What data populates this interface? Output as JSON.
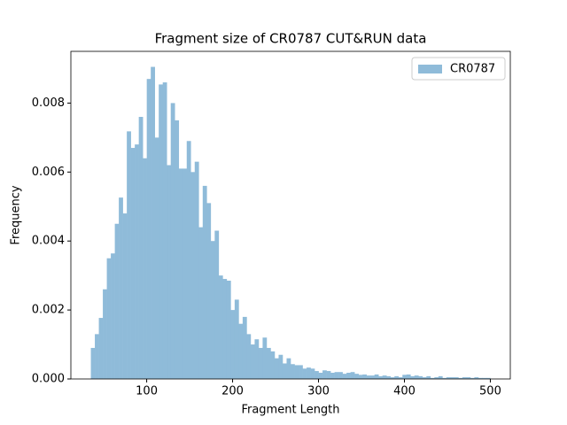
{
  "chart_data": {
    "type": "histogram",
    "title": "Fragment size of CR0787 CUT&RUN data",
    "x_label": "Fragment Length",
    "y_label": "Frequency",
    "bins": [
      35,
      39.65,
      44.3,
      48.95,
      53.6,
      58.25,
      62.9,
      67.55,
      72.2,
      76.85,
      81.5,
      86.15,
      90.8,
      95.45,
      100.1,
      104.75,
      109.4,
      114.05,
      118.7,
      123.35,
      128,
      132.65,
      137.3,
      141.95,
      146.6,
      151.25,
      155.9,
      160.55,
      165.2,
      169.85,
      174.5,
      179.15,
      183.8,
      188.45,
      193.1,
      197.75,
      202.4,
      207.05,
      211.7,
      216.35,
      221,
      225.65,
      230.3,
      234.95,
      239.6,
      244.25,
      248.9,
      253.55,
      258.2,
      262.85,
      267.5,
      272.15,
      276.8,
      281.45,
      286.1,
      290.75,
      295.4,
      300.05,
      304.7,
      309.35,
      314,
      318.65,
      323.3,
      327.95,
      332.6,
      337.25,
      341.9,
      346.55,
      351.2,
      355.85,
      360.5,
      365.15,
      369.8,
      374.45,
      379.1,
      383.75,
      388.4,
      393.05,
      397.7,
      402.35,
      407,
      411.65,
      416.3,
      420.95,
      425.6,
      430.25,
      434.9,
      439.55,
      444.2,
      448.85,
      453.5,
      458.15,
      462.8,
      467.45,
      472.1,
      476.75,
      481.4,
      486.05,
      490.7,
      495.35,
      500
    ],
    "series": [
      {
        "name": "CR0787",
        "color": "#8fbbd9",
        "values": [
          0.0009,
          0.0013,
          0.00177,
          0.0026,
          0.0035,
          0.00364,
          0.0045,
          0.00526,
          0.0048,
          0.00718,
          0.0067,
          0.0068,
          0.0076,
          0.0064,
          0.0087,
          0.00905,
          0.007,
          0.00854,
          0.0086,
          0.0062,
          0.008,
          0.0075,
          0.0061,
          0.0061,
          0.0069,
          0.006,
          0.0063,
          0.0044,
          0.0056,
          0.0051,
          0.004,
          0.0043,
          0.003,
          0.0029,
          0.00285,
          0.002,
          0.0023,
          0.0016,
          0.0018,
          0.0013,
          0.001,
          0.00115,
          0.0009,
          0.0012,
          0.0009,
          0.0008,
          0.0006,
          0.0007,
          0.00045,
          0.0006,
          0.00043,
          0.0004,
          0.0004,
          0.0003,
          0.00033,
          0.0003,
          0.00023,
          0.00018,
          0.00025,
          0.00023,
          0.00018,
          0.0002,
          0.0002,
          0.00015,
          0.00018,
          0.0002,
          0.00015,
          0.00012,
          0.00013,
          0.0001,
          0.0001,
          0.00013,
          8e-05,
          0.0001,
          8e-05,
          5e-05,
          8e-05,
          5e-05,
          0.00012,
          0.00013,
          8e-05,
          0.0001,
          8e-05,
          5e-05,
          8e-05,
          3e-05,
          5e-05,
          8e-05,
          3e-05,
          5e-05,
          5e-05,
          5e-05,
          3e-05,
          5e-05,
          5e-05,
          3e-05,
          5e-05,
          3e-05,
          3e-05,
          3e-05
        ]
      }
    ],
    "xlim": [
      11.75,
      523.25
    ],
    "xticks": [
      100,
      200,
      300,
      400,
      500
    ],
    "ylim": [
      0,
      0.0095
    ],
    "yticks": [
      {
        "value": 0,
        "label": "0.000"
      },
      {
        "value": 0.002,
        "label": "0.002"
      },
      {
        "value": 0.004,
        "label": "0.004"
      },
      {
        "value": 0.006,
        "label": "0.006"
      },
      {
        "value": 0.008,
        "label": "0.008"
      }
    ],
    "legend": "upper right"
  }
}
